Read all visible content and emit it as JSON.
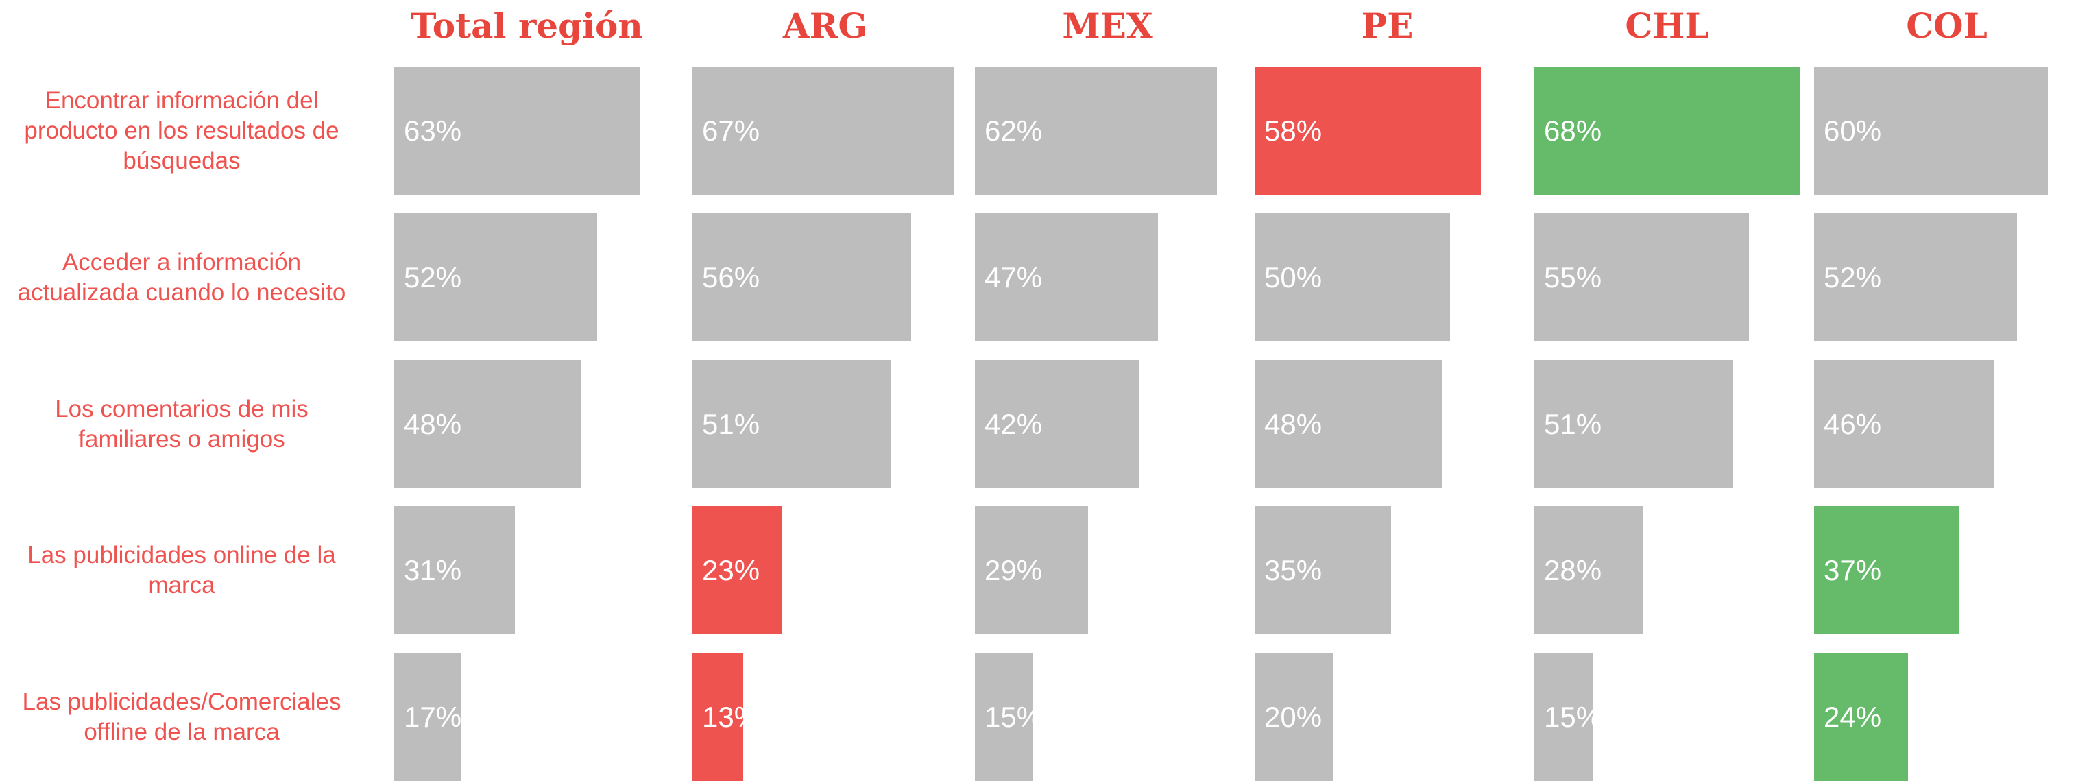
{
  "chart_data": {
    "type": "bar",
    "categories": [
      "Encontrar información del producto en los resultados de búsquedas",
      "Acceder a información actualizada cuando lo necesito",
      "Los comentarios de mis familiares o amigos",
      "Las publicidades online de la marca",
      "Las publicidades/Comerciales offline de la marca"
    ],
    "xlim": [
      0,
      68
    ],
    "series": [
      {
        "name": "Total región",
        "values": [
          63,
          52,
          48,
          31,
          17
        ],
        "value_labels": [
          "63%",
          "52%",
          "48%",
          "31%",
          "17%"
        ],
        "colors": [
          "#bdbdbd",
          "#bdbdbd",
          "#bdbdbd",
          "#bdbdbd",
          "#bdbdbd"
        ]
      },
      {
        "name": "ARG",
        "values": [
          67,
          56,
          51,
          23,
          13
        ],
        "value_labels": [
          "67%",
          "56%",
          "51%",
          "23%",
          "13%"
        ],
        "colors": [
          "#bdbdbd",
          "#bdbdbd",
          "#bdbdbd",
          "#ef5350",
          "#ef5350"
        ]
      },
      {
        "name": "MEX",
        "values": [
          62,
          47,
          42,
          29,
          15
        ],
        "value_labels": [
          "62%",
          "47%",
          "42%",
          "29%",
          "15%"
        ],
        "colors": [
          "#bdbdbd",
          "#bdbdbd",
          "#bdbdbd",
          "#bdbdbd",
          "#bdbdbd"
        ]
      },
      {
        "name": "PE",
        "values": [
          58,
          50,
          48,
          35,
          20
        ],
        "value_labels": [
          "58%",
          "50%",
          "48%",
          "35%",
          "20%"
        ],
        "colors": [
          "#ef5350",
          "#bdbdbd",
          "#bdbdbd",
          "#bdbdbd",
          "#bdbdbd"
        ]
      },
      {
        "name": "CHL",
        "values": [
          68,
          55,
          51,
          28,
          15
        ],
        "value_labels": [
          "68%",
          "55%",
          "51%",
          "28%",
          "15%"
        ],
        "colors": [
          "#66bb6a",
          "#bdbdbd",
          "#bdbdbd",
          "#bdbdbd",
          "#bdbdbd"
        ]
      },
      {
        "name": "COL",
        "values": [
          60,
          52,
          46,
          37,
          24
        ],
        "value_labels": [
          "60%",
          "52%",
          "46%",
          "37%",
          "24%"
        ],
        "colors": [
          "#bdbdbd",
          "#bdbdbd",
          "#bdbdbd",
          "#66bb6a",
          "#66bb6a"
        ]
      }
    ]
  }
}
